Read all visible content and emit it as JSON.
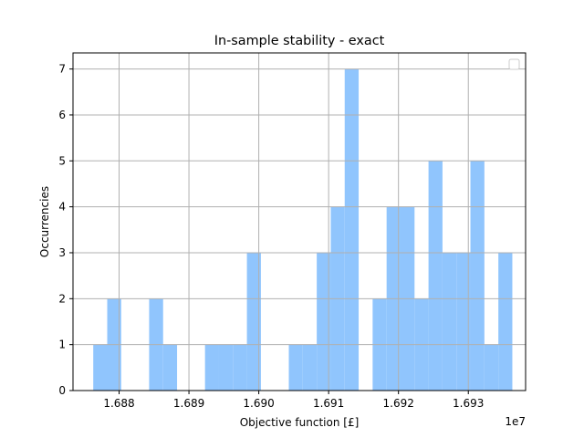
{
  "chart_data": {
    "type": "bar",
    "title": "In-sample stability - exact",
    "xlabel": "Objective function [£]",
    "ylabel": "Occurrencies",
    "x_offset_label": "1e7",
    "bar_color": "#90c5fd",
    "grid": true,
    "legend": "top-right, empty",
    "xlim": [
      1.68734,
      1.69382
    ],
    "ylim": [
      0,
      7.35
    ],
    "x_ticks": [
      1.688,
      1.689,
      1.69,
      1.691,
      1.692,
      1.693
    ],
    "x_tick_labels": [
      "1.688",
      "1.689",
      "1.690",
      "1.691",
      "1.692",
      "1.693"
    ],
    "y_ticks": [
      0,
      1,
      2,
      3,
      4,
      5,
      6,
      7
    ],
    "y_tick_labels": [
      "0",
      "1",
      "2",
      "3",
      "4",
      "5",
      "6",
      "7"
    ],
    "bin_edges": [
      1.68763,
      1.68783,
      1.68803,
      1.68823,
      1.68843,
      1.68863,
      1.68883,
      1.68903,
      1.68923,
      1.68943,
      1.68963,
      1.68983,
      1.69003,
      1.69023,
      1.69043,
      1.69063,
      1.69083,
      1.69103,
      1.69123,
      1.69143,
      1.69163,
      1.69183,
      1.69203,
      1.69223,
      1.69243,
      1.69263,
      1.69283,
      1.69303,
      1.69323,
      1.69343,
      1.69363
    ],
    "counts": [
      1,
      2,
      0,
      0,
      2,
      1,
      0,
      0,
      1,
      1,
      1,
      3,
      0,
      0,
      1,
      1,
      3,
      4,
      7,
      0,
      2,
      4,
      4,
      2,
      5,
      3,
      3,
      5,
      1,
      3
    ]
  }
}
